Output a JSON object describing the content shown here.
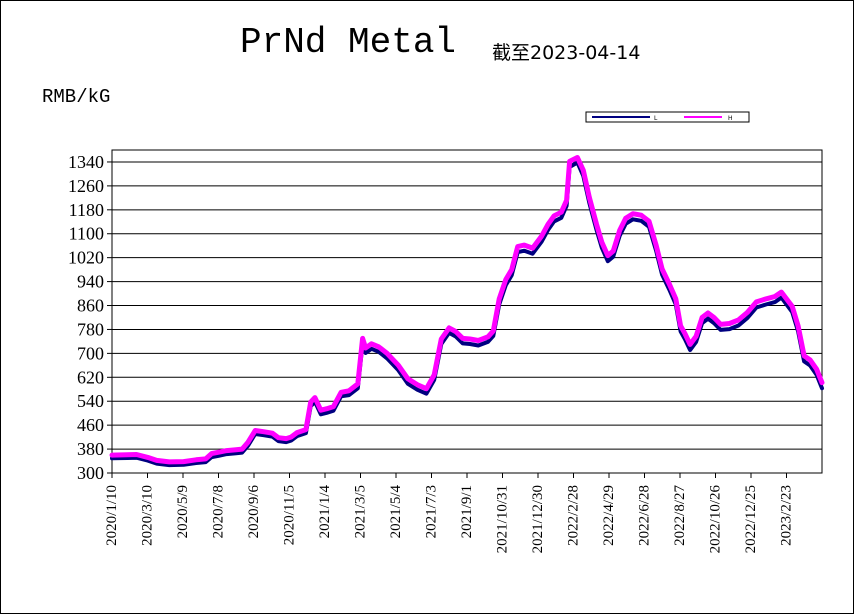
{
  "header": {
    "title": "PrNd Metal",
    "subtitle": "截至2023-04-14",
    "unit": "RMB/kG"
  },
  "colors": {
    "series_L": "#000080",
    "series_H": "#ff00ff",
    "grid": "#000000",
    "background": "#ffffff"
  },
  "chart_data": {
    "type": "line",
    "ylim": [
      300,
      1380
    ],
    "y_ticks": [
      300,
      380,
      460,
      540,
      620,
      700,
      780,
      860,
      940,
      1020,
      1100,
      1180,
      1260,
      1340
    ],
    "x_range": [
      "2020-01-10",
      "2023-04-14"
    ],
    "x_tick_labels": [
      "2020/1/10",
      "2020/3/10",
      "2020/5/9",
      "2020/7/8",
      "2020/9/6",
      "2020/11/5",
      "2021/1/4",
      "2021/3/5",
      "2021/5/4",
      "2021/7/3",
      "2021/9/1",
      "2021/10/31",
      "2021/12/30",
      "2022/2/28",
      "2022/4/29",
      "2022/6/28",
      "2022/8/27",
      "2022/10/26",
      "2022/12/25",
      "2023/2/23"
    ],
    "grid": "horizontal",
    "legend_position": "top-right",
    "series": [
      {
        "name": "L",
        "points": [
          [
            "2020-01-10",
            356
          ],
          [
            "2020-02-05",
            357
          ],
          [
            "2020-02-20",
            358
          ],
          [
            "2020-03-10",
            348
          ],
          [
            "2020-03-25",
            338
          ],
          [
            "2020-04-15",
            333
          ],
          [
            "2020-05-09",
            334
          ],
          [
            "2020-05-30",
            340
          ],
          [
            "2020-06-15",
            343
          ],
          [
            "2020-06-25",
            360
          ],
          [
            "2020-07-08",
            365
          ],
          [
            "2020-07-20",
            370
          ],
          [
            "2020-08-05",
            373
          ],
          [
            "2020-08-15",
            375
          ],
          [
            "2020-08-25",
            398
          ],
          [
            "2020-09-06",
            437
          ],
          [
            "2020-09-20",
            433
          ],
          [
            "2020-10-05",
            428
          ],
          [
            "2020-10-15",
            413
          ],
          [
            "2020-10-28",
            410
          ],
          [
            "2020-11-05",
            415
          ],
          [
            "2020-11-15",
            430
          ],
          [
            "2020-11-30",
            440
          ],
          [
            "2020-12-08",
            530
          ],
          [
            "2020-12-15",
            545
          ],
          [
            "2020-12-25",
            503
          ],
          [
            "2021-01-04",
            508
          ],
          [
            "2021-01-15",
            515
          ],
          [
            "2021-01-28",
            563
          ],
          [
            "2021-02-10",
            567
          ],
          [
            "2021-02-25",
            590
          ],
          [
            "2021-03-05",
            740
          ],
          [
            "2021-03-10",
            708
          ],
          [
            "2021-03-20",
            722
          ],
          [
            "2021-04-01",
            712
          ],
          [
            "2021-04-15",
            690
          ],
          [
            "2021-05-04",
            650
          ],
          [
            "2021-05-20",
            605
          ],
          [
            "2021-06-05",
            585
          ],
          [
            "2021-06-20",
            572
          ],
          [
            "2021-07-03",
            618
          ],
          [
            "2021-07-15",
            738
          ],
          [
            "2021-07-28",
            775
          ],
          [
            "2021-08-08",
            763
          ],
          [
            "2021-08-20",
            740
          ],
          [
            "2021-09-01",
            738
          ],
          [
            "2021-09-15",
            733
          ],
          [
            "2021-10-01",
            745
          ],
          [
            "2021-10-10",
            765
          ],
          [
            "2021-10-20",
            870
          ],
          [
            "2021-10-31",
            935
          ],
          [
            "2021-11-10",
            968
          ],
          [
            "2021-11-20",
            1045
          ],
          [
            "2021-12-01",
            1050
          ],
          [
            "2021-12-15",
            1040
          ],
          [
            "2021-12-30",
            1080
          ],
          [
            "2022-01-10",
            1120
          ],
          [
            "2022-01-20",
            1148
          ],
          [
            "2022-02-01",
            1160
          ],
          [
            "2022-02-10",
            1200
          ],
          [
            "2022-02-15",
            1330
          ],
          [
            "2022-02-28",
            1345
          ],
          [
            "2022-03-10",
            1300
          ],
          [
            "2022-03-20",
            1210
          ],
          [
            "2022-04-01",
            1120
          ],
          [
            "2022-04-10",
            1060
          ],
          [
            "2022-04-20",
            1015
          ],
          [
            "2022-04-29",
            1030
          ],
          [
            "2022-05-10",
            1100
          ],
          [
            "2022-05-20",
            1140
          ],
          [
            "2022-06-01",
            1155
          ],
          [
            "2022-06-15",
            1150
          ],
          [
            "2022-06-28",
            1130
          ],
          [
            "2022-07-10",
            1050
          ],
          [
            "2022-07-20",
            970
          ],
          [
            "2022-08-01",
            920
          ],
          [
            "2022-08-12",
            870
          ],
          [
            "2022-08-20",
            780
          ],
          [
            "2022-08-27",
            755
          ],
          [
            "2022-09-05",
            718
          ],
          [
            "2022-09-15",
            745
          ],
          [
            "2022-09-25",
            808
          ],
          [
            "2022-10-05",
            823
          ],
          [
            "2022-10-15",
            808
          ],
          [
            "2022-10-26",
            785
          ],
          [
            "2022-11-10",
            788
          ],
          [
            "2022-11-25",
            800
          ],
          [
            "2022-12-10",
            825
          ],
          [
            "2022-12-25",
            860
          ],
          [
            "2023-01-10",
            870
          ],
          [
            "2023-01-25",
            878
          ],
          [
            "2023-02-05",
            893
          ],
          [
            "2023-02-23",
            845
          ],
          [
            "2023-03-05",
            780
          ],
          [
            "2023-03-15",
            680
          ],
          [
            "2023-03-25",
            666
          ],
          [
            "2023-04-05",
            635
          ],
          [
            "2023-04-14",
            590
          ]
        ]
      },
      {
        "name": "H",
        "points": [
          [
            "2020-01-10",
            360
          ],
          [
            "2020-02-05",
            361
          ],
          [
            "2020-02-20",
            362
          ],
          [
            "2020-03-10",
            352
          ],
          [
            "2020-03-25",
            342
          ],
          [
            "2020-04-15",
            337
          ],
          [
            "2020-05-09",
            338
          ],
          [
            "2020-05-30",
            344
          ],
          [
            "2020-06-15",
            347
          ],
          [
            "2020-06-25",
            365
          ],
          [
            "2020-07-08",
            370
          ],
          [
            "2020-07-20",
            375
          ],
          [
            "2020-08-05",
            378
          ],
          [
            "2020-08-15",
            380
          ],
          [
            "2020-08-25",
            403
          ],
          [
            "2020-09-06",
            442
          ],
          [
            "2020-09-20",
            438
          ],
          [
            "2020-10-05",
            433
          ],
          [
            "2020-10-15",
            418
          ],
          [
            "2020-10-28",
            415
          ],
          [
            "2020-11-05",
            420
          ],
          [
            "2020-11-15",
            435
          ],
          [
            "2020-11-30",
            445
          ],
          [
            "2020-12-08",
            537
          ],
          [
            "2020-12-15",
            552
          ],
          [
            "2020-12-25",
            510
          ],
          [
            "2021-01-04",
            515
          ],
          [
            "2021-01-15",
            522
          ],
          [
            "2021-01-28",
            570
          ],
          [
            "2021-02-10",
            575
          ],
          [
            "2021-02-25",
            598
          ],
          [
            "2021-03-05",
            750
          ],
          [
            "2021-03-10",
            718
          ],
          [
            "2021-03-20",
            732
          ],
          [
            "2021-04-01",
            722
          ],
          [
            "2021-04-15",
            700
          ],
          [
            "2021-05-04",
            660
          ],
          [
            "2021-05-20",
            615
          ],
          [
            "2021-06-05",
            595
          ],
          [
            "2021-06-20",
            582
          ],
          [
            "2021-07-03",
            628
          ],
          [
            "2021-07-15",
            748
          ],
          [
            "2021-07-28",
            785
          ],
          [
            "2021-08-08",
            773
          ],
          [
            "2021-08-20",
            750
          ],
          [
            "2021-09-01",
            748
          ],
          [
            "2021-09-15",
            743
          ],
          [
            "2021-10-01",
            755
          ],
          [
            "2021-10-10",
            775
          ],
          [
            "2021-10-20",
            882
          ],
          [
            "2021-10-31",
            947
          ],
          [
            "2021-11-10",
            980
          ],
          [
            "2021-11-20",
            1057
          ],
          [
            "2021-12-01",
            1062
          ],
          [
            "2021-12-15",
            1052
          ],
          [
            "2021-12-30",
            1092
          ],
          [
            "2022-01-10",
            1132
          ],
          [
            "2022-01-20",
            1160
          ],
          [
            "2022-02-01",
            1172
          ],
          [
            "2022-02-10",
            1212
          ],
          [
            "2022-02-15",
            1342
          ],
          [
            "2022-02-28",
            1355
          ],
          [
            "2022-03-10",
            1312
          ],
          [
            "2022-03-20",
            1222
          ],
          [
            "2022-04-01",
            1132
          ],
          [
            "2022-04-10",
            1072
          ],
          [
            "2022-04-20",
            1027
          ],
          [
            "2022-04-29",
            1042
          ],
          [
            "2022-05-10",
            1112
          ],
          [
            "2022-05-20",
            1152
          ],
          [
            "2022-06-01",
            1167
          ],
          [
            "2022-06-15",
            1162
          ],
          [
            "2022-06-28",
            1142
          ],
          [
            "2022-07-10",
            1062
          ],
          [
            "2022-07-20",
            982
          ],
          [
            "2022-08-01",
            932
          ],
          [
            "2022-08-12",
            882
          ],
          [
            "2022-08-20",
            792
          ],
          [
            "2022-08-27",
            767
          ],
          [
            "2022-09-05",
            730
          ],
          [
            "2022-09-15",
            757
          ],
          [
            "2022-09-25",
            820
          ],
          [
            "2022-10-05",
            835
          ],
          [
            "2022-10-15",
            820
          ],
          [
            "2022-10-26",
            797
          ],
          [
            "2022-11-10",
            800
          ],
          [
            "2022-11-25",
            812
          ],
          [
            "2022-12-10",
            837
          ],
          [
            "2022-12-25",
            872
          ],
          [
            "2023-01-10",
            882
          ],
          [
            "2023-01-25",
            890
          ],
          [
            "2023-02-05",
            905
          ],
          [
            "2023-02-23",
            857
          ],
          [
            "2023-03-05",
            792
          ],
          [
            "2023-03-15",
            692
          ],
          [
            "2023-03-25",
            678
          ],
          [
            "2023-04-05",
            647
          ],
          [
            "2023-04-14",
            602
          ]
        ]
      }
    ]
  }
}
